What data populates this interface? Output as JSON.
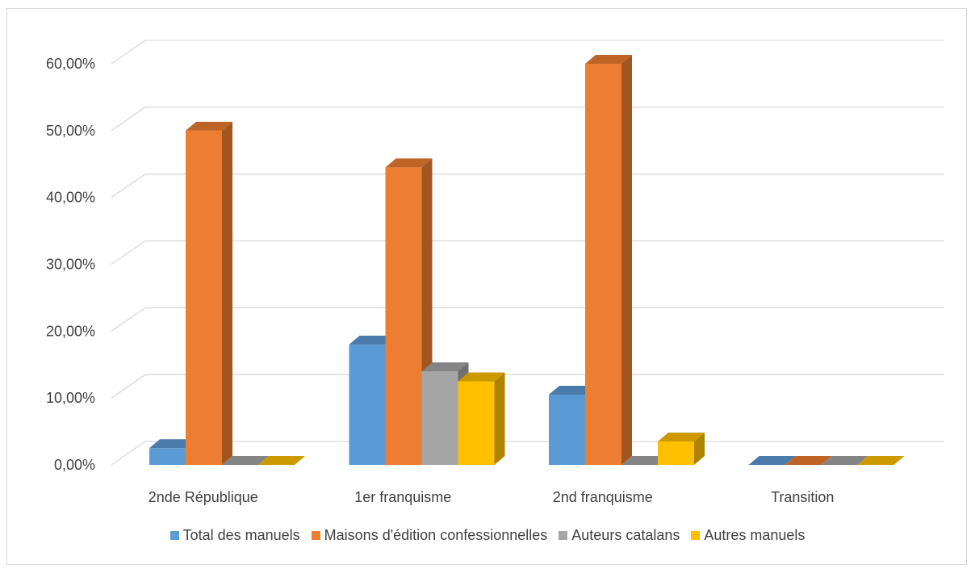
{
  "chart_data": {
    "type": "bar",
    "categories": [
      "2nde République",
      "1er franquisme",
      "2nd franquisme",
      "Transition"
    ],
    "series": [
      {
        "name": "Total des manuels",
        "values": [
          2.5,
          18,
          10.5,
          0
        ],
        "color": "#5B9BD5"
      },
      {
        "name": "Maisons d'édition confessionnelles",
        "values": [
          50,
          44.5,
          60,
          0
        ],
        "color": "#ED7D31"
      },
      {
        "name": "Auteurs catalans",
        "values": [
          0,
          14,
          0,
          0
        ],
        "color": "#A5A5A5"
      },
      {
        "name": "Autres manuels",
        "values": [
          0,
          12.5,
          3.5,
          0
        ],
        "color": "#FFC000"
      }
    ],
    "yticks": [
      "0,00%",
      "10,00%",
      "20,00%",
      "30,00%",
      "40,00%",
      "50,00%",
      "60,00%"
    ],
    "ylim": [
      0,
      60
    ],
    "grid": true,
    "legend_position": "bottom",
    "three_d": true
  }
}
